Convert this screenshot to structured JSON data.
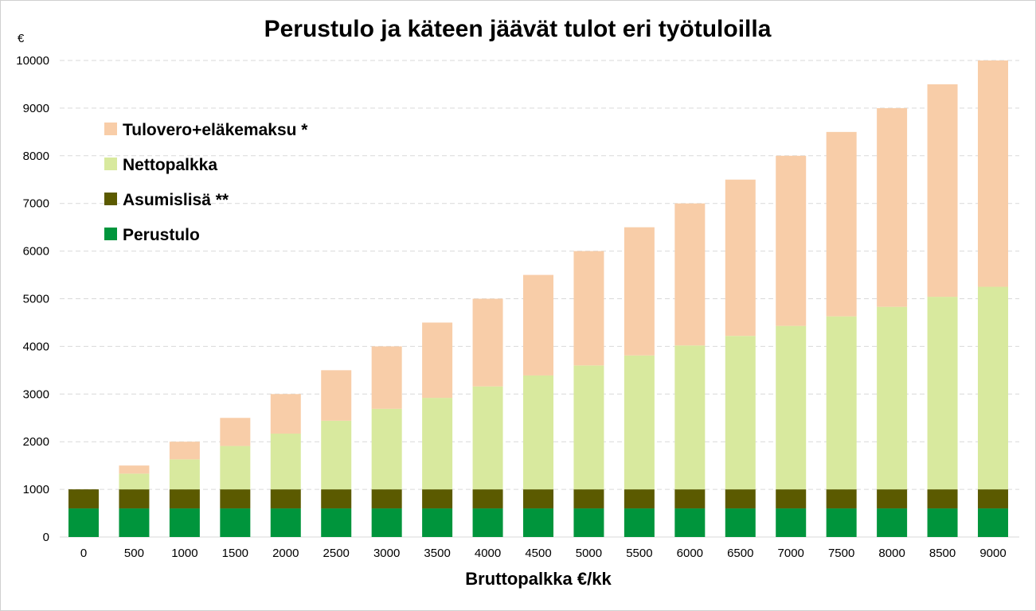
{
  "chart_data": {
    "type": "bar",
    "stacked": true,
    "title": "Perustulo ja käteen jäävät tulot eri työtuloilla",
    "ylabel": "€",
    "xlabel": "Bruttopalkka €/kk",
    "ylim": [
      0,
      10000
    ],
    "yticks": [
      0,
      1000,
      2000,
      3000,
      4000,
      5000,
      6000,
      7000,
      8000,
      9000,
      10000
    ],
    "grid": true,
    "legend_position": "top-left",
    "categories": [
      "0",
      "500",
      "1000",
      "1500",
      "2000",
      "2500",
      "3000",
      "3500",
      "4000",
      "4500",
      "5000",
      "5500",
      "6000",
      "6500",
      "7000",
      "7500",
      "8000",
      "8500",
      "9000"
    ],
    "series": [
      {
        "name": "Perustulo",
        "color": "#00953c",
        "values": [
          600,
          600,
          600,
          600,
          600,
          600,
          600,
          600,
          600,
          600,
          600,
          600,
          600,
          600,
          600,
          600,
          600,
          600,
          600
        ]
      },
      {
        "name": "Asumislisä **",
        "color": "#5b5a00",
        "values": [
          400,
          400,
          400,
          400,
          400,
          400,
          400,
          400,
          400,
          400,
          400,
          400,
          400,
          400,
          400,
          400,
          400,
          400,
          400
        ]
      },
      {
        "name": "Nettopalkka",
        "color": "#d8e99e",
        "values": [
          0,
          330,
          630,
          910,
          1170,
          1440,
          1690,
          1920,
          2160,
          2390,
          2600,
          2810,
          3020,
          3220,
          3430,
          3630,
          3830,
          4040,
          4250
        ]
      },
      {
        "name": "Tulovero+eläkemaksu *",
        "color": "#f8cda8",
        "values": [
          0,
          170,
          370,
          590,
          830,
          1060,
          1310,
          1580,
          1840,
          2110,
          2400,
          2690,
          2980,
          3280,
          3570,
          3870,
          4170,
          4460,
          4750
        ]
      }
    ],
    "legend_order": [
      "Tulovero+eläkemaksu *",
      "Nettopalkka",
      "Asumislisä **",
      "Perustulo"
    ]
  }
}
